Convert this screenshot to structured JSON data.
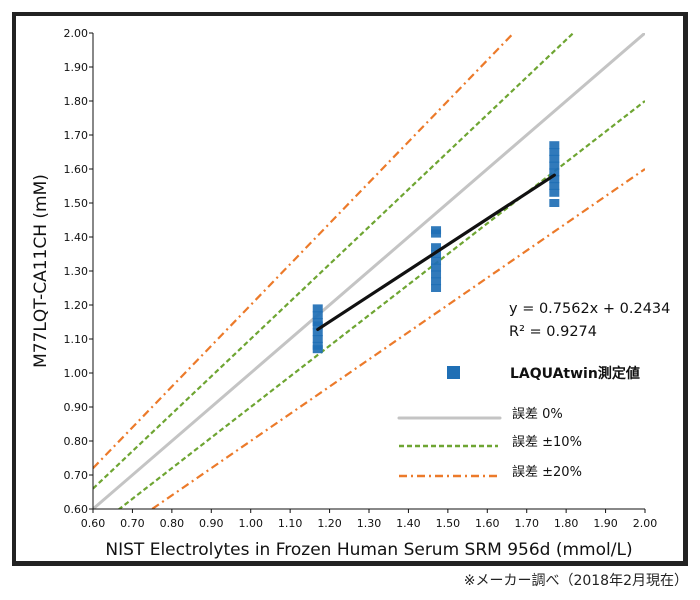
{
  "chart_data": {
    "type": "scatter",
    "title": "",
    "xlabel": "NIST Electrolytes in Frozen Human Serum SRM 956d (mmol/L)",
    "ylabel": "M77LQT-CA11CH (mM)",
    "xlim": [
      0.6,
      2.0
    ],
    "ylim": [
      0.6,
      2.0
    ],
    "x_ticks": [
      "0.60",
      "0.70",
      "0.80",
      "0.90",
      "1.00",
      "1.10",
      "1.20",
      "1.30",
      "1.40",
      "1.50",
      "1.60",
      "1.70",
      "1.80",
      "1.90",
      "2.00"
    ],
    "y_ticks": [
      "0.60",
      "0.70",
      "0.80",
      "0.90",
      "1.00",
      "1.10",
      "1.20",
      "1.30",
      "1.40",
      "1.50",
      "1.60",
      "1.70",
      "1.80",
      "1.90",
      "2.00"
    ],
    "grid": false,
    "series": [
      {
        "name": "LAQUAtwin測定値",
        "kind": "scatter",
        "color": "#1f6fb5",
        "points": [
          {
            "x": 1.17,
            "y": 1.19
          },
          {
            "x": 1.17,
            "y": 1.17
          },
          {
            "x": 1.17,
            "y": 1.15
          },
          {
            "x": 1.17,
            "y": 1.14
          },
          {
            "x": 1.17,
            "y": 1.12
          },
          {
            "x": 1.17,
            "y": 1.1
          },
          {
            "x": 1.17,
            "y": 1.08
          },
          {
            "x": 1.17,
            "y": 1.07
          },
          {
            "x": 1.47,
            "y": 1.42
          },
          {
            "x": 1.47,
            "y": 1.41
          },
          {
            "x": 1.47,
            "y": 1.37
          },
          {
            "x": 1.47,
            "y": 1.35
          },
          {
            "x": 1.47,
            "y": 1.33
          },
          {
            "x": 1.47,
            "y": 1.31
          },
          {
            "x": 1.47,
            "y": 1.29
          },
          {
            "x": 1.47,
            "y": 1.27
          },
          {
            "x": 1.47,
            "y": 1.25
          },
          {
            "x": 1.77,
            "y": 1.67
          },
          {
            "x": 1.77,
            "y": 1.65
          },
          {
            "x": 1.77,
            "y": 1.63
          },
          {
            "x": 1.77,
            "y": 1.61
          },
          {
            "x": 1.77,
            "y": 1.59
          },
          {
            "x": 1.77,
            "y": 1.57
          },
          {
            "x": 1.77,
            "y": 1.55
          },
          {
            "x": 1.77,
            "y": 1.53
          },
          {
            "x": 1.77,
            "y": 1.5
          }
        ]
      },
      {
        "name": "trendline",
        "kind": "line",
        "color": "#111111",
        "slope": 0.7562,
        "intercept": 0.2434,
        "x_range": [
          1.17,
          1.77
        ]
      },
      {
        "name": "誤差 0%",
        "kind": "ref",
        "factor": 1.0,
        "color": "#c4c4c4",
        "style": "solid"
      },
      {
        "name": "誤差 +10%",
        "kind": "ref",
        "factor": 1.1,
        "color": "#6ea532",
        "style": "dash"
      },
      {
        "name": "誤差 -10%",
        "kind": "ref",
        "factor": 0.9,
        "color": "#6ea532",
        "style": "dash"
      },
      {
        "name": "誤差 +20%",
        "kind": "ref",
        "factor": 1.2,
        "color": "#ec7a2a",
        "style": "dashdot"
      },
      {
        "name": "誤差 -20%",
        "kind": "ref",
        "factor": 0.8,
        "color": "#ec7a2a",
        "style": "dashdot"
      }
    ],
    "annotations": {
      "equation": "y = 0.7562x + 0.2434",
      "r2": "R² = 0.9274"
    },
    "legend": {
      "placement": "right",
      "items": [
        {
          "label": "LAQUAtwin測定値",
          "marker": "square",
          "color": "#1f6fb5"
        },
        {
          "label": "誤差 0%",
          "marker": "solid",
          "color": "#c4c4c4"
        },
        {
          "label": "誤差 ±10%",
          "marker": "dash",
          "color": "#6ea532"
        },
        {
          "label": "誤差 ±20%",
          "marker": "dashdot",
          "color": "#ec7a2a"
        }
      ]
    }
  },
  "footnote": "※メーカー調べ（2018年2月現在）"
}
